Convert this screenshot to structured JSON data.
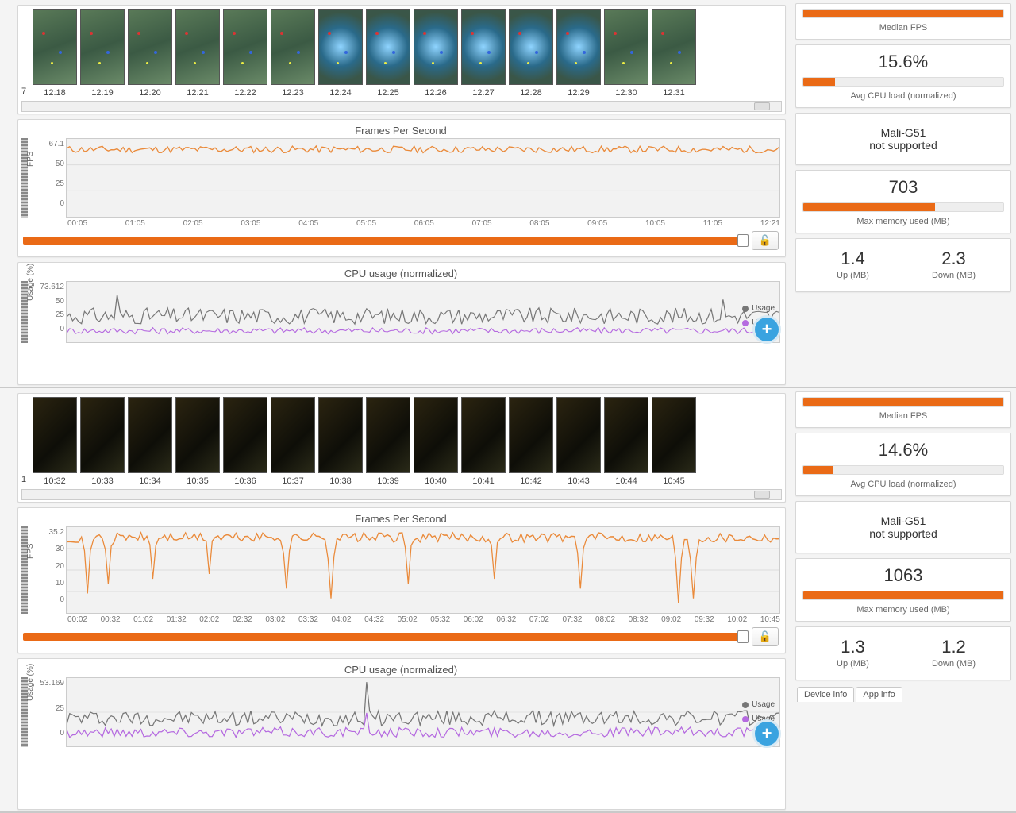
{
  "colors": {
    "accent": "#ea6a16",
    "panel_bg": "#ffffff",
    "panel_border": "#d7d7d7",
    "plot_bg": "#f2f2f2",
    "grid": "#dcdcdc",
    "cpu_total_line": "#777777",
    "cpu_app_line": "#b56ae0",
    "fps_line": "#ea8a3a",
    "slider_color": "#ea6a16",
    "plus_badge": "#3aa3e0"
  },
  "sessions": [
    {
      "id": "top",
      "thumb_style": "game-map",
      "thumb_lead": "7",
      "thumbs": [
        "12:18",
        "12:19",
        "12:20",
        "12:21",
        "12:22",
        "12:23",
        "12:24",
        "12:25",
        "12:26",
        "12:27",
        "12:28",
        "12:29",
        "12:30",
        "12:31"
      ],
      "fps_chart": {
        "type": "line",
        "title": "Frames Per Second",
        "ylabel": "FPS",
        "ymax_label": "67.1",
        "yticks": [
          "67.1",
          "50",
          "25",
          "0"
        ],
        "ylim": [
          0,
          67.1
        ],
        "xticks": [
          "00:05",
          "01:05",
          "02:05",
          "03:05",
          "04:05",
          "05:05",
          "06:05",
          "07:05",
          "08:05",
          "09:05",
          "10:05",
          "11:05",
          "12:21"
        ],
        "line_color": "#ea8a3a",
        "baseline_value": 58,
        "jitter": 3,
        "dips": []
      },
      "cpu_chart": {
        "type": "line",
        "title": "CPU usage (normalized)",
        "ylabel": "Usage (%)",
        "ymax_label": "73.612",
        "yticks": [
          "73.612",
          "50",
          "25",
          "0"
        ],
        "ylim": [
          0,
          73.612
        ],
        "legend": [
          {
            "label": "Usage",
            "color": "#777777"
          },
          {
            "label": "Usage",
            "color": "#b56ae0"
          }
        ],
        "series": [
          {
            "color": "#777777",
            "baseline": 32,
            "jitter": 10,
            "spikes": [
              [
                0.07,
                58
              ],
              [
                0.92,
                52
              ]
            ]
          },
          {
            "color": "#b56ae0",
            "baseline": 14,
            "jitter": 4,
            "spikes": []
          }
        ]
      },
      "stats": {
        "median_fps": {
          "label": "Median FPS",
          "bar_pct": 100
        },
        "cpu_load": {
          "value": "15.6%",
          "label": "Avg CPU load (normalized)",
          "bar_pct": 16
        },
        "gpu": {
          "name": "Mali-G51",
          "status": "not supported"
        },
        "mem": {
          "value": "703",
          "label": "Max memory used (MB)",
          "bar_pct": 66
        },
        "net": {
          "up": {
            "value": "1.4",
            "label": "Up (MB)"
          },
          "down": {
            "value": "2.3",
            "label": "Down (MB)"
          }
        }
      }
    },
    {
      "id": "bot",
      "thumb_style": "dark-scene",
      "thumb_lead": "1",
      "thumbs": [
        "10:32",
        "10:33",
        "10:34",
        "10:35",
        "10:36",
        "10:37",
        "10:38",
        "10:39",
        "10:40",
        "10:41",
        "10:42",
        "10:43",
        "10:44",
        "10:45"
      ],
      "fps_chart": {
        "type": "line",
        "title": "Frames Per Second",
        "ylabel": "FPS",
        "ymax_label": "35.2",
        "yticks": [
          "35.2",
          "30",
          "20",
          "10",
          "0"
        ],
        "ylim": [
          0,
          35.2
        ],
        "xticks": [
          "00:02",
          "00:32",
          "01:02",
          "01:32",
          "02:02",
          "02:32",
          "03:02",
          "03:32",
          "04:02",
          "04:32",
          "05:02",
          "05:32",
          "06:02",
          "06:32",
          "07:02",
          "07:32",
          "08:02",
          "08:32",
          "09:02",
          "09:32",
          "10:02",
          "10:45"
        ],
        "line_color": "#ea8a3a",
        "baseline_value": 31,
        "jitter": 2,
        "dips": [
          [
            0.03,
            8
          ],
          [
            0.06,
            12
          ],
          [
            0.12,
            14
          ],
          [
            0.2,
            16
          ],
          [
            0.31,
            10
          ],
          [
            0.37,
            6
          ],
          [
            0.48,
            12
          ],
          [
            0.6,
            14
          ],
          [
            0.72,
            10
          ],
          [
            0.86,
            4
          ],
          [
            0.88,
            6
          ]
        ]
      },
      "cpu_chart": {
        "type": "line",
        "title": "CPU usage (normalized)",
        "ylabel": "Usage (%)",
        "ymax_label": "53.169",
        "yticks": [
          "53.169",
          "25",
          "0"
        ],
        "ylim": [
          0,
          53.169
        ],
        "legend": [
          {
            "label": "Usage",
            "color": "#777777"
          },
          {
            "label": "Usage",
            "color": "#b56ae0"
          }
        ],
        "series": [
          {
            "color": "#777777",
            "baseline": 22,
            "jitter": 6,
            "spikes": [
              [
                0.42,
                50
              ]
            ]
          },
          {
            "color": "#b56ae0",
            "baseline": 11,
            "jitter": 4,
            "spikes": [
              [
                0.42,
                26
              ]
            ]
          }
        ]
      },
      "stats": {
        "median_fps": {
          "label": "Median FPS",
          "bar_pct": 100
        },
        "cpu_load": {
          "value": "14.6%",
          "label": "Avg CPU load (normalized)",
          "bar_pct": 15
        },
        "gpu": {
          "name": "Mali-G51",
          "status": "not supported"
        },
        "mem": {
          "value": "1063",
          "label": "Max memory used (MB)",
          "bar_pct": 100
        },
        "net": {
          "up": {
            "value": "1.3",
            "label": "Up (MB)"
          },
          "down": {
            "value": "1.2",
            "label": "Down (MB)"
          }
        }
      },
      "tabs": [
        "Device info",
        "App info"
      ]
    }
  ]
}
